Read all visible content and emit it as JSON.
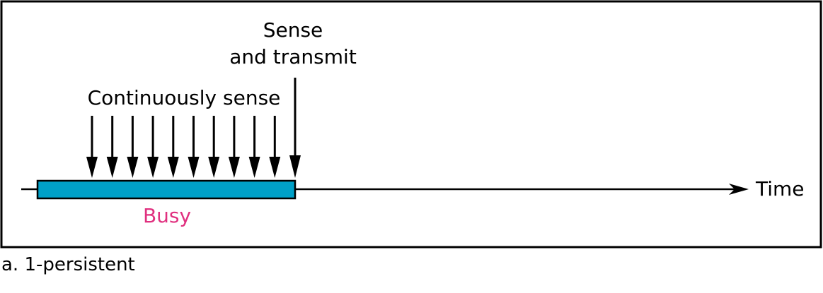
{
  "diagram": {
    "labels": {
      "sense_line1": "Sense",
      "sense_line2": "and transmit",
      "continuously": "Continuously sense",
      "busy": "Busy",
      "time": "Time"
    },
    "sense_arrow_count": 10,
    "colors": {
      "busy_fill": "#00A0C8",
      "busy_label": "#E0307F",
      "stroke": "#000000"
    }
  },
  "caption": "a. 1-persistent"
}
